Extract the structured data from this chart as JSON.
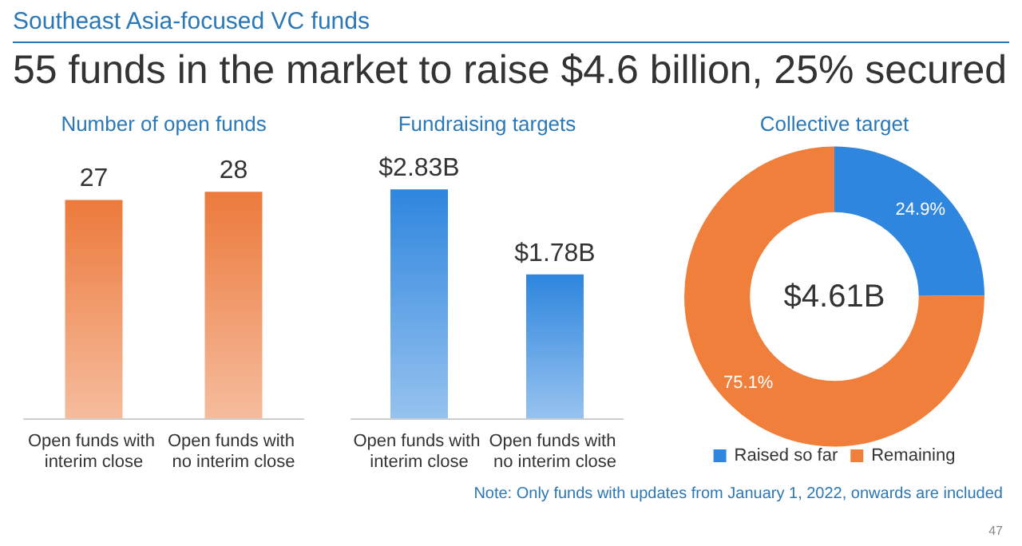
{
  "chart_data": [
    {
      "type": "other",
      "title": "Southeast Asia-focused VC funds",
      "subtitle": "55 funds in the market to raise $4.6 billion, 25% secured",
      "annotations": [
        "Note: Only funds with updates from January 1, 2022, onwards are included",
        "47"
      ]
    },
    {
      "type": "bar",
      "title": "Number of open funds",
      "categories": [
        "Open funds with interim close",
        "Open funds with no interim close"
      ],
      "values": [
        27,
        28
      ],
      "color": "#ec7a3c",
      "tick_labels": "x",
      "data_labels": true
    },
    {
      "type": "bar",
      "title": "Fundraising targets",
      "categories": [
        "Open funds with interim close",
        "Open funds with no interim close"
      ],
      "values": [
        2.83,
        1.78
      ],
      "value_labels": [
        "$2.83B",
        "$1.78B"
      ],
      "color": "#2e86de",
      "tick_labels": "x"
    },
    {
      "type": "donut",
      "title": "Collective target",
      "categories": [
        "Raised so far",
        "Remaining"
      ],
      "values": [
        24.9,
        75.1
      ],
      "colors": [
        "#2e86de",
        "#f07f3c"
      ],
      "value_labels": [
        "24.9%",
        "75.1%"
      ],
      "annotations": [
        "$4.61B"
      ],
      "legend": "bottom"
    }
  ]
}
